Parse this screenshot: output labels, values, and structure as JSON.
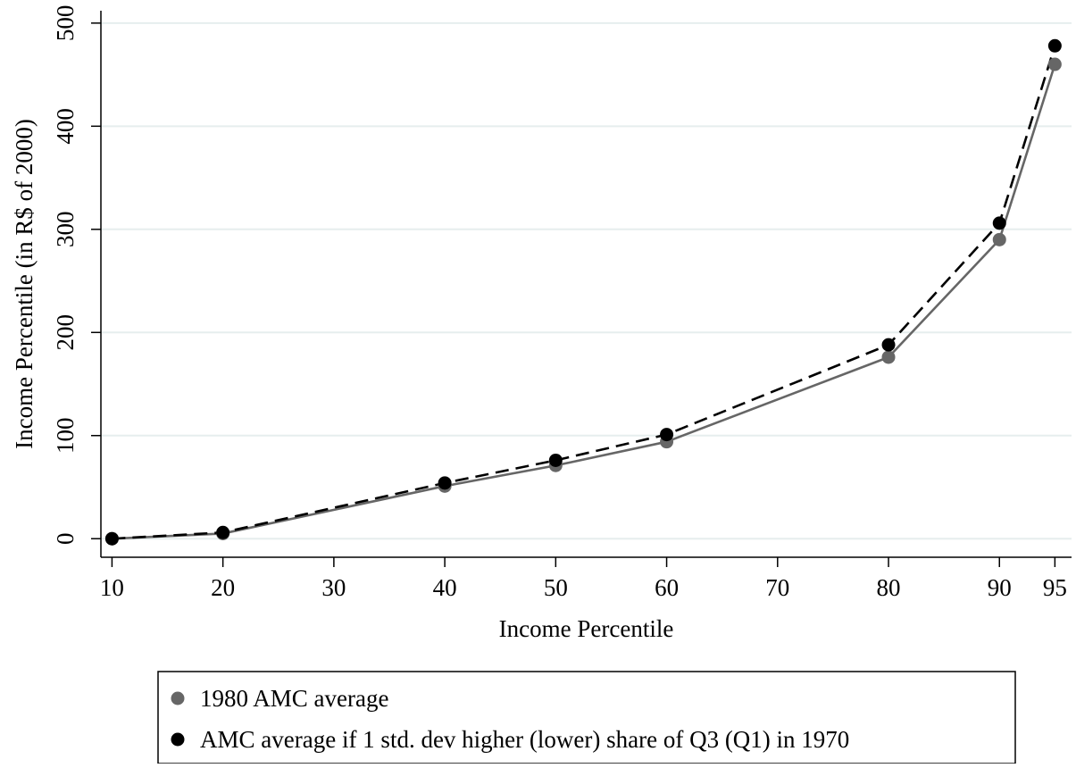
{
  "chart_data": {
    "type": "line",
    "title": "",
    "xlabel": "Income Percentile",
    "ylabel": "Income Percentile (in R$ of 2000)",
    "x_ticks": [
      10,
      20,
      30,
      40,
      50,
      60,
      70,
      80,
      90,
      95
    ],
    "y_ticks": [
      0,
      100,
      200,
      300,
      400,
      500
    ],
    "xlim": [
      9,
      96.5
    ],
    "ylim": [
      -18,
      512
    ],
    "grid": true,
    "legend_position": "bottom",
    "series": [
      {
        "name": "1980 AMC average",
        "color": "#666666",
        "line_style": "solid",
        "x": [
          10,
          20,
          40,
          50,
          60,
          80,
          90,
          95
        ],
        "y": [
          0,
          5,
          51,
          71,
          94,
          176,
          290,
          460
        ]
      },
      {
        "name": "AMC average if 1 std. dev higher (lower) share of Q3 (Q1) in 1970",
        "color": "#000000",
        "line_style": "dashed",
        "x": [
          10,
          20,
          40,
          50,
          60,
          80,
          90,
          95
        ],
        "y": [
          0,
          6,
          54,
          76,
          101,
          188,
          306,
          478
        ]
      }
    ]
  }
}
